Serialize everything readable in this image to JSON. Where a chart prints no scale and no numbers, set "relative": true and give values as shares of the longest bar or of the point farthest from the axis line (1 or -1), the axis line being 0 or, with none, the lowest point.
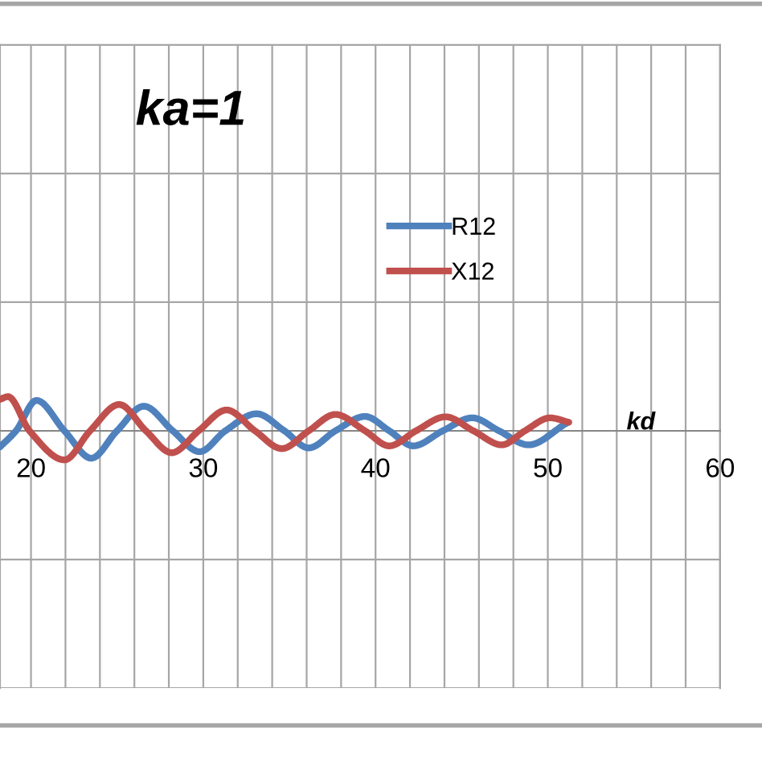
{
  "chart_data": {
    "type": "line",
    "title": "ka=1",
    "xlabel": "kd",
    "relative": true,
    "xlim": [
      18.2,
      60
    ],
    "xticks": [
      20,
      {
        "value": 22,
        "label": null
      },
      {
        "value": 24,
        "label": null
      },
      {
        "value": 26,
        "label": null
      },
      {
        "value": 28,
        "label": null
      },
      30,
      {
        "value": 32,
        "label": null
      },
      {
        "value": 34,
        "label": null
      },
      {
        "value": 36,
        "label": null
      },
      {
        "value": 38,
        "label": null
      },
      40,
      {
        "value": 42,
        "label": null
      },
      {
        "value": 44,
        "label": null
      },
      {
        "value": 46,
        "label": null
      },
      {
        "value": 48,
        "label": null
      },
      50,
      {
        "value": 52,
        "label": null
      },
      {
        "value": 54,
        "label": null
      },
      {
        "value": 56,
        "label": null
      },
      {
        "value": 58,
        "label": null
      },
      60
    ],
    "grid": true,
    "legend": "top right",
    "tick_labels": "x",
    "marker": "none",
    "line_style": "solid",
    "series": [
      {
        "name": "R12",
        "color": "#4f81bd",
        "x": [
          18.2,
          19.13,
          20.32,
          21.94,
          23.5,
          24.99,
          26.55,
          28.23,
          29.79,
          31.28,
          33.09,
          34.71,
          36.12,
          37.67,
          39.39,
          40.8,
          42.19,
          43.9,
          45.61,
          47.17,
          48.88,
          51.07
        ],
        "values": [
          -0.47,
          0,
          0.89,
          0,
          -0.8,
          0,
          0.72,
          0,
          -0.61,
          0,
          0.5,
          0,
          -0.5,
          0,
          0.42,
          0,
          -0.44,
          0,
          0.38,
          0,
          -0.41,
          0.22
        ]
      },
      {
        "name": "X12",
        "color": "#c0504d",
        "x": [
          18.2,
          18.67,
          19.91,
          21.94,
          23.43,
          25.12,
          26.67,
          28.17,
          29.73,
          31.35,
          33.0,
          34.56,
          36.12,
          37.67,
          39.39,
          40.79,
          42.35,
          44.06,
          45.68,
          47.33,
          48.67,
          50.13,
          51.22
        ],
        "values": [
          0.92,
          1,
          0,
          -0.85,
          0,
          0.77,
          0,
          -0.64,
          0,
          0.61,
          0,
          -0.52,
          0,
          0.48,
          0,
          -0.44,
          0,
          0.41,
          0,
          -0.41,
          0,
          0.38,
          0.25
        ]
      }
    ]
  }
}
